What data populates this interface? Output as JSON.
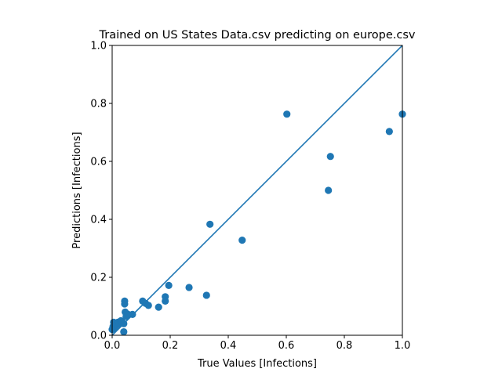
{
  "chart_data": {
    "type": "scatter",
    "title": "Trained on US States Data.csv predicting on europe.csv",
    "xlabel": "True Values [Infections]",
    "ylabel": "Predictions [Infections]",
    "xlim": [
      0,
      1
    ],
    "ylim": [
      0,
      1
    ],
    "xticks": [
      "0.0",
      "0.2",
      "0.4",
      "0.6",
      "0.8",
      "1.0"
    ],
    "yticks": [
      "0.0",
      "0.2",
      "0.4",
      "0.6",
      "0.8",
      "1.0"
    ],
    "grid": false,
    "reference_line": {
      "from": [
        0,
        0
      ],
      "to": [
        1,
        1
      ]
    },
    "colors": {
      "points": "#1f77b4",
      "line": "#1f77b4"
    },
    "points": [
      {
        "x": 0.0,
        "y": 0.02
      },
      {
        "x": 0.003,
        "y": 0.03
      },
      {
        "x": 0.005,
        "y": 0.045
      },
      {
        "x": 0.008,
        "y": 0.025
      },
      {
        "x": 0.012,
        "y": 0.04
      },
      {
        "x": 0.015,
        "y": 0.035
      },
      {
        "x": 0.02,
        "y": 0.045
      },
      {
        "x": 0.025,
        "y": 0.04
      },
      {
        "x": 0.03,
        "y": 0.05
      },
      {
        "x": 0.035,
        "y": 0.045
      },
      {
        "x": 0.04,
        "y": 0.04
      },
      {
        "x": 0.04,
        "y": 0.012
      },
      {
        "x": 0.043,
        "y": 0.108
      },
      {
        "x": 0.043,
        "y": 0.118
      },
      {
        "x": 0.045,
        "y": 0.08
      },
      {
        "x": 0.048,
        "y": 0.065
      },
      {
        "x": 0.055,
        "y": 0.072
      },
      {
        "x": 0.07,
        "y": 0.072
      },
      {
        "x": 0.105,
        "y": 0.118
      },
      {
        "x": 0.115,
        "y": 0.11
      },
      {
        "x": 0.125,
        "y": 0.103
      },
      {
        "x": 0.16,
        "y": 0.097
      },
      {
        "x": 0.183,
        "y": 0.133
      },
      {
        "x": 0.183,
        "y": 0.118
      },
      {
        "x": 0.195,
        "y": 0.172
      },
      {
        "x": 0.265,
        "y": 0.165
      },
      {
        "x": 0.325,
        "y": 0.138
      },
      {
        "x": 0.337,
        "y": 0.383
      },
      {
        "x": 0.448,
        "y": 0.328
      },
      {
        "x": 0.602,
        "y": 0.763
      },
      {
        "x": 0.745,
        "y": 0.5
      },
      {
        "x": 0.752,
        "y": 0.617
      },
      {
        "x": 0.955,
        "y": 0.703
      },
      {
        "x": 1.0,
        "y": 0.763
      }
    ]
  }
}
